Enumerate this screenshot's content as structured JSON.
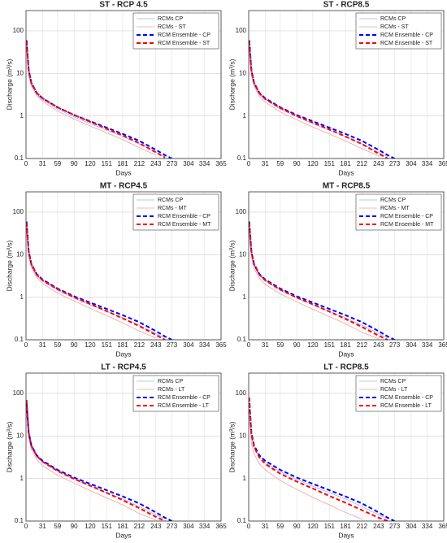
{
  "chart_data": [
    {
      "type": "line",
      "title": "ST - RCP 4.5",
      "xlabel": "Days",
      "ylabel": "Discharge (m³/s)",
      "yscale": "log",
      "grid": true,
      "legend": "upper right",
      "xlim": [
        0,
        365
      ],
      "xticks": [
        0,
        31,
        59,
        90,
        120,
        151,
        181,
        212,
        243,
        273,
        304,
        334,
        365
      ],
      "ylim": [
        0.1,
        300
      ],
      "yticks": [
        0.1,
        1,
        10,
        100
      ],
      "x": [
        1,
        5,
        10,
        20,
        31,
        59,
        90,
        120,
        151,
        181,
        212,
        243,
        260,
        273
      ],
      "series": [
        {
          "name": "RCMs CP",
          "color": "#9fb3f0",
          "style": "solid",
          "values": [
            40,
            10,
            5.5,
            3.2,
            2.4,
            1.45,
            0.95,
            0.66,
            0.46,
            0.33,
            0.22,
            0.14,
            0.11,
            null
          ]
        },
        {
          "name": "RCMs - ST",
          "color": "#f2a0a0",
          "style": "solid",
          "values": [
            35,
            9,
            5,
            3,
            2.2,
            1.3,
            0.85,
            0.58,
            0.4,
            0.28,
            0.18,
            0.12,
            null,
            null
          ]
        },
        {
          "name": "RCM Ensemble - CP",
          "color": "#0000ff",
          "style": "dashed",
          "values": [
            60,
            12,
            6,
            3.5,
            2.6,
            1.6,
            1.05,
            0.75,
            0.53,
            0.38,
            0.26,
            0.16,
            0.12,
            0.1
          ]
        },
        {
          "name": "RCM Ensemble - ST",
          "color": "#ff0000",
          "style": "dashed",
          "values": [
            55,
            12,
            6,
            3.5,
            2.6,
            1.6,
            1.05,
            0.73,
            0.5,
            0.35,
            0.23,
            0.14,
            0.105,
            null
          ]
        }
      ]
    },
    {
      "type": "line",
      "title": "ST - RCP8.5",
      "xlabel": "Days",
      "ylabel": "Discharge (m³/s)",
      "yscale": "log",
      "grid": true,
      "legend": "upper right",
      "xlim": [
        0,
        365
      ],
      "xticks": [
        0,
        31,
        59,
        90,
        120,
        151,
        181,
        212,
        243,
        273,
        304,
        334,
        365
      ],
      "ylim": [
        0.1,
        300
      ],
      "yticks": [
        0.1,
        1,
        10,
        100
      ],
      "x": [
        1,
        5,
        10,
        20,
        31,
        59,
        90,
        120,
        151,
        181,
        212,
        243,
        260,
        273
      ],
      "series": [
        {
          "name": "RCMs CP",
          "color": "#9fb3f0",
          "style": "solid",
          "values": [
            40,
            10,
            5.5,
            3.2,
            2.4,
            1.45,
            0.95,
            0.66,
            0.46,
            0.33,
            0.22,
            0.14,
            0.11,
            null
          ]
        },
        {
          "name": "RCMs - ST",
          "color": "#f2a0a0",
          "style": "solid",
          "values": [
            34,
            9,
            5,
            2.9,
            2.1,
            1.25,
            0.82,
            0.55,
            0.38,
            0.26,
            0.17,
            0.115,
            null,
            null
          ]
        },
        {
          "name": "RCM Ensemble - CP",
          "color": "#0000ff",
          "style": "dashed",
          "values": [
            60,
            12,
            6,
            3.5,
            2.6,
            1.6,
            1.05,
            0.75,
            0.53,
            0.38,
            0.26,
            0.16,
            0.12,
            0.1
          ]
        },
        {
          "name": "RCM Ensemble - ST",
          "color": "#ff0000",
          "style": "dashed",
          "values": [
            55,
            12,
            6,
            3.4,
            2.5,
            1.55,
            1.0,
            0.7,
            0.48,
            0.33,
            0.22,
            0.13,
            0.1,
            null
          ]
        }
      ]
    },
    {
      "type": "line",
      "title": "MT - RCP4.5",
      "xlabel": "Days",
      "ylabel": "Discharge (m³/s)",
      "yscale": "log",
      "grid": true,
      "legend": "upper right",
      "xlim": [
        0,
        365
      ],
      "xticks": [
        0,
        31,
        59,
        90,
        120,
        151,
        181,
        212,
        243,
        273,
        304,
        334,
        365
      ],
      "ylim": [
        0.1,
        300
      ],
      "yticks": [
        0.1,
        1,
        10,
        100
      ],
      "x": [
        1,
        5,
        10,
        20,
        31,
        59,
        90,
        120,
        151,
        181,
        212,
        243,
        260,
        273
      ],
      "series": [
        {
          "name": "RCMs CP",
          "color": "#9fb3f0",
          "style": "solid",
          "values": [
            40,
            10,
            5.5,
            3.2,
            2.4,
            1.45,
            0.95,
            0.66,
            0.46,
            0.33,
            0.22,
            0.14,
            0.11,
            null
          ]
        },
        {
          "name": "RCMs - MT",
          "color": "#f2a0a0",
          "style": "solid",
          "values": [
            34,
            9,
            5,
            2.9,
            2.1,
            1.25,
            0.82,
            0.55,
            0.37,
            0.25,
            0.16,
            0.11,
            null,
            null
          ]
        },
        {
          "name": "RCM Ensemble - CP",
          "color": "#0000ff",
          "style": "dashed",
          "values": [
            60,
            12,
            6,
            3.5,
            2.6,
            1.6,
            1.05,
            0.75,
            0.53,
            0.38,
            0.26,
            0.16,
            0.12,
            0.1
          ]
        },
        {
          "name": "RCM Ensemble - MT",
          "color": "#ff0000",
          "style": "dashed",
          "values": [
            55,
            12,
            6,
            3.4,
            2.5,
            1.55,
            1.0,
            0.7,
            0.47,
            0.32,
            0.21,
            0.13,
            0.1,
            null
          ]
        }
      ]
    },
    {
      "type": "line",
      "title": "MT - RCP8.5",
      "xlabel": "Days",
      "ylabel": "Discharge (m³/s)",
      "yscale": "log",
      "grid": true,
      "legend": "upper right",
      "xlim": [
        0,
        365
      ],
      "xticks": [
        0,
        31,
        59,
        90,
        120,
        151,
        181,
        212,
        243,
        273,
        304,
        334,
        365
      ],
      "ylim": [
        0.1,
        300
      ],
      "yticks": [
        0.1,
        1,
        10,
        100
      ],
      "x": [
        1,
        5,
        10,
        20,
        31,
        59,
        90,
        120,
        151,
        181,
        212,
        243,
        260,
        273
      ],
      "series": [
        {
          "name": "RCMs CP",
          "color": "#9fb3f0",
          "style": "solid",
          "values": [
            40,
            10,
            5.5,
            3.2,
            2.4,
            1.45,
            0.95,
            0.66,
            0.46,
            0.33,
            0.22,
            0.14,
            0.11,
            null
          ]
        },
        {
          "name": "RCMs - MT",
          "color": "#f2a0a0",
          "style": "solid",
          "values": [
            33,
            9,
            4.8,
            2.8,
            2.0,
            1.2,
            0.78,
            0.52,
            0.35,
            0.24,
            0.15,
            0.105,
            null,
            null
          ]
        },
        {
          "name": "RCM Ensemble - CP",
          "color": "#0000ff",
          "style": "dashed",
          "values": [
            60,
            12,
            6,
            3.5,
            2.6,
            1.6,
            1.05,
            0.75,
            0.53,
            0.38,
            0.26,
            0.16,
            0.12,
            0.1
          ]
        },
        {
          "name": "RCM Ensemble - MT",
          "color": "#ff0000",
          "style": "dashed",
          "values": [
            55,
            12,
            5.9,
            3.4,
            2.5,
            1.5,
            0.98,
            0.68,
            0.46,
            0.31,
            0.2,
            0.125,
            0.1,
            null
          ]
        }
      ]
    },
    {
      "type": "line",
      "title": "LT - RCP4.5",
      "xlabel": "Days",
      "ylabel": "Discharge (m³/s)",
      "yscale": "log",
      "grid": true,
      "legend": "upper right",
      "xlim": [
        0,
        365
      ],
      "xticks": [
        0,
        31,
        59,
        90,
        120,
        151,
        181,
        212,
        243,
        273,
        304,
        334,
        365
      ],
      "ylim": [
        0.1,
        300
      ],
      "yticks": [
        0.1,
        1,
        10,
        100
      ],
      "x": [
        1,
        5,
        10,
        20,
        31,
        59,
        90,
        120,
        151,
        181,
        212,
        243,
        260,
        273
      ],
      "series": [
        {
          "name": "RCMs CP",
          "color": "#9fb3f0",
          "style": "solid",
          "values": [
            40,
            10,
            5.5,
            3.2,
            2.4,
            1.45,
            0.95,
            0.66,
            0.46,
            0.33,
            0.22,
            0.14,
            0.11,
            null
          ]
        },
        {
          "name": "RCMs - LT",
          "color": "#f2a0a0",
          "style": "solid",
          "values": [
            33,
            9,
            4.8,
            2.8,
            2.0,
            1.2,
            0.78,
            0.52,
            0.35,
            0.24,
            0.15,
            0.105,
            null,
            null
          ]
        },
        {
          "name": "RCM Ensemble - CP",
          "color": "#0000ff",
          "style": "dashed",
          "values": [
            60,
            12,
            6,
            3.5,
            2.6,
            1.6,
            1.05,
            0.75,
            0.53,
            0.38,
            0.26,
            0.16,
            0.12,
            0.1
          ]
        },
        {
          "name": "RCM Ensemble - LT",
          "color": "#ff0000",
          "style": "dashed",
          "values": [
            70,
            12,
            5.9,
            3.4,
            2.5,
            1.5,
            0.98,
            0.68,
            0.46,
            0.31,
            0.2,
            0.125,
            0.1,
            null
          ]
        }
      ]
    },
    {
      "type": "line",
      "title": "LT - RCP8.5",
      "xlabel": "Days",
      "ylabel": "Discharge (m³/s)",
      "yscale": "log",
      "grid": true,
      "legend": "upper right",
      "xlim": [
        0,
        365
      ],
      "xticks": [
        0,
        31,
        59,
        90,
        120,
        151,
        181,
        212,
        243,
        273,
        304,
        334,
        365
      ],
      "ylim": [
        0.1,
        300
      ],
      "yticks": [
        0.1,
        1,
        10,
        100
      ],
      "x": [
        1,
        5,
        10,
        20,
        31,
        59,
        90,
        120,
        151,
        181,
        212,
        243,
        260,
        273
      ],
      "series": [
        {
          "name": "RCMs CP",
          "color": "#9fb3f0",
          "style": "solid",
          "values": [
            40,
            10,
            5.5,
            3.2,
            2.4,
            1.45,
            0.95,
            0.66,
            0.46,
            0.33,
            0.22,
            0.14,
            0.11,
            null
          ]
        },
        {
          "name": "RCMs - LT",
          "color": "#f2a0a0",
          "style": "solid",
          "values": [
            30,
            7,
            3.8,
            2.2,
            1.6,
            0.9,
            0.55,
            0.36,
            0.24,
            0.16,
            0.11,
            null,
            null,
            null
          ]
        },
        {
          "name": "RCM Ensemble - CP",
          "color": "#0000ff",
          "style": "dashed",
          "values": [
            60,
            12,
            6,
            3.5,
            2.6,
            1.6,
            1.05,
            0.75,
            0.53,
            0.38,
            0.26,
            0.16,
            0.12,
            0.1
          ]
        },
        {
          "name": "RCM Ensemble - LT",
          "color": "#ff0000",
          "style": "dashed",
          "values": [
            80,
            11,
            5.5,
            3.1,
            2.2,
            1.3,
            0.85,
            0.58,
            0.39,
            0.27,
            0.18,
            0.12,
            0.1,
            null
          ]
        }
      ]
    }
  ]
}
